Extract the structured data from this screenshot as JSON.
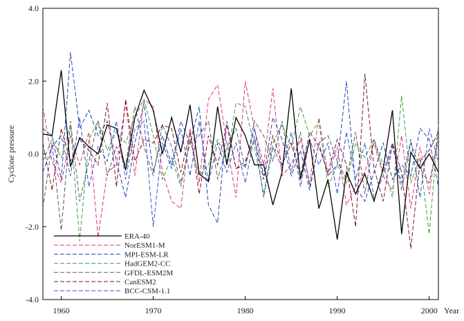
{
  "chart_data": {
    "type": "line",
    "xlabel": "Year",
    "ylabel": "Cyclone pressure",
    "xlim": [
      1958,
      2001
    ],
    "ylim": [
      -4.0,
      4.0
    ],
    "x_ticks": [
      1960,
      1970,
      1980,
      1990,
      2000
    ],
    "y_ticks": [
      {
        "value": -4.0,
        "label": "-4.0"
      },
      {
        "value": -2.0,
        "label": "-2.0"
      },
      {
        "value": 0.0,
        "label": "0.0"
      },
      {
        "value": 2.0,
        "label": "2.0"
      },
      {
        "value": 4.0,
        "label": "4.0"
      }
    ],
    "grid": false,
    "legend_position": "lower-left",
    "x": [
      1958,
      1959,
      1960,
      1961,
      1962,
      1963,
      1964,
      1965,
      1966,
      1967,
      1968,
      1969,
      1970,
      1971,
      1972,
      1973,
      1974,
      1975,
      1976,
      1977,
      1978,
      1979,
      1980,
      1981,
      1982,
      1983,
      1984,
      1985,
      1986,
      1987,
      1988,
      1989,
      1990,
      1991,
      1992,
      1993,
      1994,
      1995,
      1996,
      1997,
      1998,
      1999,
      2000,
      2001
    ],
    "series": [
      {
        "name": "ERA-40",
        "color": "#000000",
        "dash": "solid",
        "values": [
          0.55,
          0.5,
          2.3,
          -0.35,
          0.45,
          0.2,
          0.0,
          0.8,
          0.7,
          -0.45,
          1.0,
          1.75,
          1.2,
          0.0,
          1.0,
          0.05,
          1.35,
          -0.55,
          -0.75,
          1.3,
          -0.3,
          1.0,
          0.5,
          -0.3,
          -0.3,
          -1.4,
          -0.5,
          1.8,
          -0.7,
          0.4,
          -1.5,
          -0.7,
          -2.35,
          -0.5,
          -1.1,
          -0.55,
          -1.3,
          -0.4,
          1.2,
          -2.2,
          0.05,
          -0.4,
          0.0,
          -0.5
        ]
      },
      {
        "name": "NorESM1-M",
        "color": "#e0307a",
        "dash": "dashed",
        "values": [
          1.3,
          -0.2,
          -0.8,
          0.5,
          -0.3,
          0.6,
          -2.3,
          -0.5,
          -0.3,
          1.4,
          -0.6,
          1.5,
          1.3,
          -0.5,
          -1.3,
          -1.5,
          0.7,
          -0.8,
          1.5,
          1.9,
          0.3,
          -1.2,
          2.0,
          0.7,
          -0.3,
          1.8,
          -0.6,
          -0.3,
          0.4,
          -0.8,
          1.0,
          -0.6,
          0.2,
          -1.4,
          -0.9,
          -0.5,
          0.3,
          -0.6,
          -1.0,
          0.5,
          -1.5,
          0.2,
          -1.1,
          0.7
        ]
      },
      {
        "name": "MPI-ESM-LR",
        "color": "#2440b0",
        "dash": "dashed",
        "values": [
          0.7,
          0.5,
          -0.7,
          2.8,
          0.7,
          1.2,
          0.5,
          0.9,
          -0.2,
          -1.2,
          0.3,
          1.4,
          -0.5,
          0.5,
          -0.3,
          0.9,
          0.3,
          1.3,
          -1.4,
          -1.9,
          0.9,
          -0.4,
          -0.3,
          0.7,
          -0.6,
          1.0,
          0.4,
          -0.6,
          0.1,
          -1.0,
          0.3,
          -0.6,
          -0.3,
          2.0,
          -0.9,
          -1.3,
          -0.5,
          0.3,
          -0.7,
          -0.3,
          -0.6,
          0.7,
          0.4,
          -0.9
        ]
      },
      {
        "name": "HadGEM2-CC",
        "color": "#3aa03a",
        "dash": "dashed",
        "values": [
          -0.2,
          0.4,
          -0.1,
          0.8,
          -2.4,
          0.4,
          0.9,
          0.1,
          0.6,
          0.3,
          1.0,
          1.5,
          0.5,
          -0.7,
          -0.1,
          -0.9,
          0.4,
          -0.6,
          -0.3,
          0.4,
          -0.2,
          1.4,
          1.3,
          0.2,
          -1.1,
          0.3,
          0.8,
          0.2,
          1.3,
          0.5,
          0.9,
          -0.9,
          -0.3,
          -0.8,
          0.3,
          -0.1,
          0.4,
          -0.3,
          -1.2,
          1.6,
          -0.8,
          -0.1,
          -2.2,
          0.8
        ]
      },
      {
        "name": "GFDL-ESM2M",
        "color": "#555566",
        "dash": "dashed",
        "values": [
          -1.5,
          0.3,
          -2.1,
          0.9,
          -1.3,
          -0.2,
          0.9,
          -0.6,
          0.2,
          -0.3,
          1.3,
          0.2,
          -0.6,
          0.8,
          0.2,
          -0.8,
          0.3,
          0.5,
          0.9,
          -0.7,
          0.2,
          0.7,
          -0.4,
          0.9,
          0.5,
          -0.2,
          0.9,
          -0.5,
          0.6,
          -0.9,
          0.3,
          0.5,
          -0.2,
          -0.7,
          0.6,
          -1.1,
          0.4,
          -0.5,
          0.3,
          -1.0,
          0.3,
          -0.4,
          -0.8,
          0.4
        ]
      },
      {
        "name": "CanESM2",
        "color": "#7a1020",
        "dash": "dashed",
        "values": [
          0.3,
          -1.0,
          0.7,
          -0.2,
          0.4,
          0.1,
          -0.3,
          1.4,
          -0.9,
          1.5,
          -0.2,
          0.4,
          0.3,
          0.8,
          0.7,
          -0.5,
          0.6,
          -1.1,
          0.5,
          -0.3,
          0.8,
          -0.4,
          -0.2,
          0.4,
          -0.7,
          0.5,
          -0.3,
          0.3,
          -0.6,
          0.6,
          0.2,
          -0.5,
          0.4,
          -0.3,
          -2.0,
          2.2,
          -0.4,
          -1.3,
          0.3,
          -0.5,
          -2.6,
          -0.2,
          0.1,
          0.6
        ]
      },
      {
        "name": "BCC-CSM-1.1",
        "color": "#3050c8",
        "dash": "dashed",
        "values": [
          -0.5,
          0.2,
          0.5,
          -0.6,
          1.0,
          -0.9,
          0.2,
          -0.2,
          0.9,
          -0.7,
          0.7,
          0.9,
          -2.0,
          0.3,
          -0.4,
          0.7,
          -0.6,
          0.9,
          -0.8,
          0.3,
          -0.5,
          0.3,
          -0.8,
          0.5,
          -1.2,
          0.2,
          -0.4,
          0.6,
          -0.9,
          0.4,
          -0.3,
          0.3,
          -1.1,
          0.6,
          -0.7,
          0.3,
          -1.2,
          -0.6,
          0.2,
          -0.8,
          0.4,
          -1.2,
          0.7,
          -0.2
        ]
      }
    ]
  }
}
